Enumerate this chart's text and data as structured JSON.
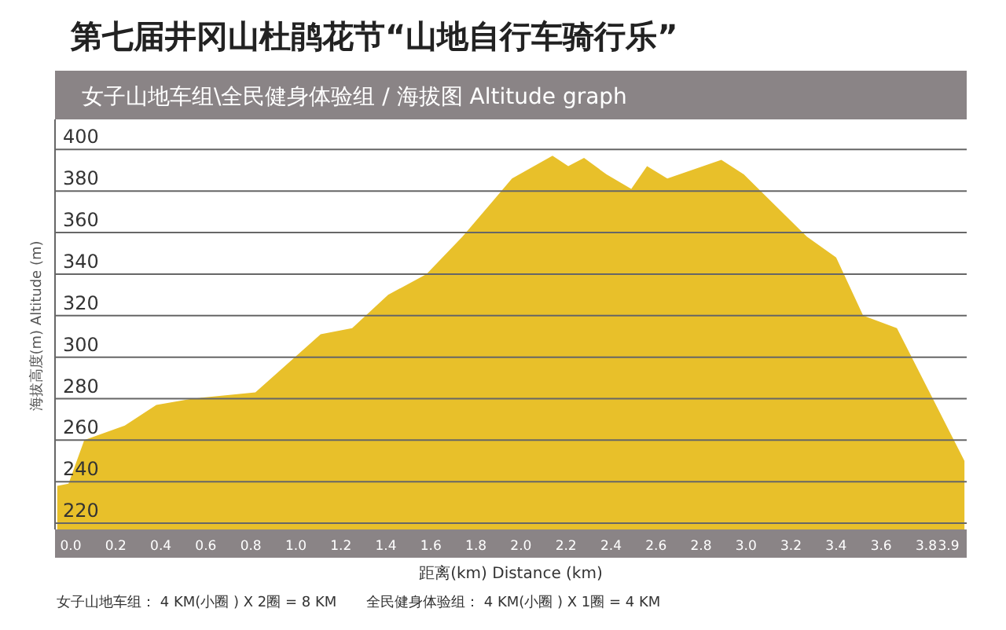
{
  "chart_data": {
    "type": "area",
    "title": "第七届井冈山杜鹃花节“山地自行车骑行乐”",
    "subtitle": "女子山地车组\\全民健身体验组  / 海拔图  Altitude graph",
    "xlabel": "距离(km)  Distance (km)",
    "ylabel": "海拔高度(m)  Altitude (m)",
    "annotations": [
      "女子山地车组： 4 KM(小圈 ) X 2圈 =  8 KM",
      "全民健身体验组： 4 KM(小圈 ) X 1圈 =  4 KM"
    ],
    "series": [
      {
        "color": "#e8c02a",
        "x": [
          -0.06,
          -0.01,
          0.06,
          0.24,
          0.38,
          0.54,
          0.82,
          1.11,
          1.25,
          1.41,
          1.58,
          1.74,
          1.96,
          2.14,
          2.21,
          2.28,
          2.38,
          2.49,
          2.56,
          2.65,
          2.89,
          2.99,
          3.27,
          3.4,
          3.52,
          3.67,
          3.97
        ],
        "values": [
          238,
          239,
          260,
          267,
          277,
          280,
          283,
          311,
          314,
          330,
          340,
          358,
          386,
          397,
          392,
          396,
          388,
          381,
          392,
          386,
          395,
          388,
          358,
          348,
          320,
          314,
          250
        ]
      }
    ],
    "xlim": [
      -0.07,
      3.98
    ],
    "ylim": [
      217,
      413
    ],
    "xticks": [
      {
        "value": 0,
        "label": "0.0"
      },
      0.2,
      0.4,
      0.6,
      0.8,
      {
        "value": 1,
        "label": "1.0"
      },
      1.2,
      1.4,
      1.6,
      1.8,
      {
        "value": 2,
        "label": "2.0"
      },
      2.2,
      2.4,
      2.6,
      2.8,
      {
        "value": 3,
        "label": "3.0"
      },
      3.2,
      3.4,
      3.6,
      3.8,
      3.9
    ],
    "yticks": [
      220,
      240,
      260,
      280,
      300,
      320,
      340,
      360,
      380,
      400
    ],
    "grid": "y"
  }
}
